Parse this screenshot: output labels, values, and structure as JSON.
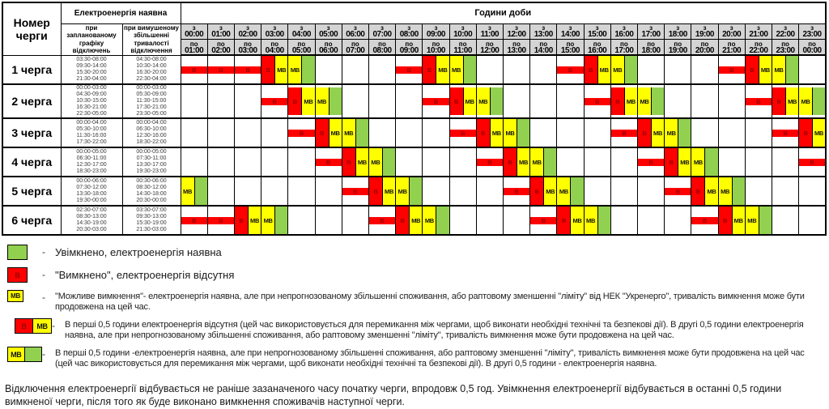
{
  "table_header": {
    "queue_col": "Номер черги",
    "power_group": "Електроенергія наявна",
    "planned_col": "при запланованому графіку відключень",
    "forced_col": "при вимушеному збільшенні тривалості відключення",
    "hours_group": "Години доби",
    "hour_from_prefix": "з",
    "hour_to_prefix": "по"
  },
  "cell_labels": {
    "G": "",
    "R": "В",
    "Y": "МВ"
  },
  "colors": {
    "on": "#92d050",
    "off": "#fe0000",
    "maybe": "#ffff00",
    "header_bg": "#d4d4d4",
    "off_letter": "#9a0000"
  },
  "chart_data": {
    "type": "heatmap",
    "x": [
      {
        "from": "00:00",
        "to": "01:00"
      },
      {
        "from": "01:00",
        "to": "02:00"
      },
      {
        "from": "02:00",
        "to": "03:00"
      },
      {
        "from": "03:00",
        "to": "04:00"
      },
      {
        "from": "04:00",
        "to": "05:00"
      },
      {
        "from": "05:00",
        "to": "06:00"
      },
      {
        "from": "06:00",
        "to": "07:00"
      },
      {
        "from": "07:00",
        "to": "08:00"
      },
      {
        "from": "08:00",
        "to": "09:00"
      },
      {
        "from": "09:00",
        "to": "10:00"
      },
      {
        "from": "10:00",
        "to": "11:00"
      },
      {
        "from": "11:00",
        "to": "12:00"
      },
      {
        "from": "12:00",
        "to": "13:00"
      },
      {
        "from": "13:00",
        "to": "14:00"
      },
      {
        "from": "14:00",
        "to": "15:00"
      },
      {
        "from": "15:00",
        "to": "16:00"
      },
      {
        "from": "16:00",
        "to": "17:00"
      },
      {
        "from": "17:00",
        "to": "18:00"
      },
      {
        "from": "18:00",
        "to": "19:00"
      },
      {
        "from": "19:00",
        "to": "20:00"
      },
      {
        "from": "20:00",
        "to": "21:00"
      },
      {
        "from": "21:00",
        "to": "22:00"
      },
      {
        "from": "22:00",
        "to": "23:00"
      },
      {
        "from": "23:00",
        "to": "00:00"
      }
    ],
    "states": {
      "G": "увімкнено",
      "R": "вимкнено",
      "Y": "можливе вимкнення"
    },
    "slot_minutes": 30,
    "rows": [
      {
        "label": "1 черга",
        "planned": [
          "03:30-08:00",
          "09:30-14:00",
          "15:30-20:00",
          "21:30-04:00"
        ],
        "forced": [
          "04:30-08:00",
          "10:30-14:00",
          "16:30-20:00",
          "22:30-04:00"
        ],
        "slots": "RRRRRRRYYGGGGGGGRRRYYGGGGGGGRRRYYGGGGGGGRRRYYGGG"
      },
      {
        "label": "2 черга",
        "planned": [
          "00:00-03:00",
          "04:30-09:00",
          "10:30-15:00",
          "16:30-21:00",
          "22:30-05:00"
        ],
        "forced": [
          "00:00-03:00",
          "05:30-09:00",
          "11:30-15:00",
          "17:30-21:00",
          "23:30-05:00"
        ],
        "slots": "GGGGGGRRRYYGGGGGGGRRRYYGGGGGGGRRRYYGGGGGGGRRRYYG"
      },
      {
        "label": "3 черга",
        "planned": [
          "00:00-04:00",
          "05:30-10:00",
          "11:30-16:00",
          "17:30-22:00"
        ],
        "forced": [
          "00:00-04:00",
          "06:30-10:00",
          "12:30-16:00",
          "18:30-22:00"
        ],
        "slots": "GGGGGGGGRRRYYGGGGGGGRRRYYGGGGGGGRRRYYGGGGGGGRRRY"
      },
      {
        "label": "4 черга",
        "planned": [
          "00:00-05:00",
          "06:30-11:00",
          "12:30-17:00",
          "18:30-23:00"
        ],
        "forced": [
          "00:00-05:00",
          "07:30-11:00",
          "13:30-17:00",
          "19:30-23:00"
        ],
        "slots": "GGGGGGGGGGRRRYYGGGGGGGRRRYYGGGGGGGRRRYYGGGGGGGRR"
      },
      {
        "label": "5 черга",
        "planned": [
          "00:00-06:00",
          "07:30-12:00",
          "13:30-18:00",
          "19:30-00:00"
        ],
        "forced": [
          "00:30-06:00",
          "08:30-12:00",
          "14:30-18:00",
          "20:30-00:00"
        ],
        "slots": "YGGGGGGGGGGGRRRYYGGGGGGGRRRYYGGGGGGGRRRYYGGGGGGG"
      },
      {
        "label": "6 черга",
        "planned": [
          "02:30-07:00",
          "08:30-13:00",
          "14:30-19:00",
          "20:30-03:00"
        ],
        "forced": [
          "03:30-07:00",
          "09:30-13:00",
          "15:30-19:00",
          "21:30-03:00"
        ],
        "slots": "RRRRRYYGGGGGGGRRRYYGGGGGGGRRRYYGGGGGGGRRRYYGGGGG"
      }
    ]
  },
  "legend_dash": "-",
  "legend": [
    {
      "swatch": "G",
      "text": "Увімкнено, електроенергія наявна"
    },
    {
      "swatch": "R",
      "text": "\"Вимкнено\", електроенергія відсутня"
    },
    {
      "swatch": "Y",
      "text": "\"Можливе вимкнення\"- електроенергія наявна, але при непрогнозованому збільшенні споживання, або раптовому зменшенні \"ліміту\" від НЕК \"Укренерго\", тривалість вимкнення може бути продовжена на цей час."
    },
    {
      "swatch": "RY",
      "text": "В перші 0,5 години електроенергія відсутня (цей час використовується для перемикання між чергами, щоб виконати необхідні технічні та безпекові дії). В другі 0,5 години електроенергія наявна, але при непрогнозованому збільшенні споживання, або раптовому зменшенні \"ліміту\", тривалість вимкнення може бути продовжена на цей час."
    },
    {
      "swatch": "YG",
      "text": "В перші 0,5 години -електроенергія наявна, але при непрогнозованому збільшенні споживання, або раптовому зменшенні \"ліміту\", тривалість вимкнення може бути продовжена на цей час (цей час використовується для перемикання між чергами, щоб виконати необхідні технічні та безпекові дії). В другі 0,5 години - електроенергія наявна."
    }
  ],
  "footer_note": "Відключення електроенергії відбувається не раніше зазаначеного часу початку черги, впродовж 0,5 год. Увімкнення електроенергії відбувається в останні 0,5 години вимкненої черги, після того як буде виконано вимкнення споживачів наступної черги."
}
